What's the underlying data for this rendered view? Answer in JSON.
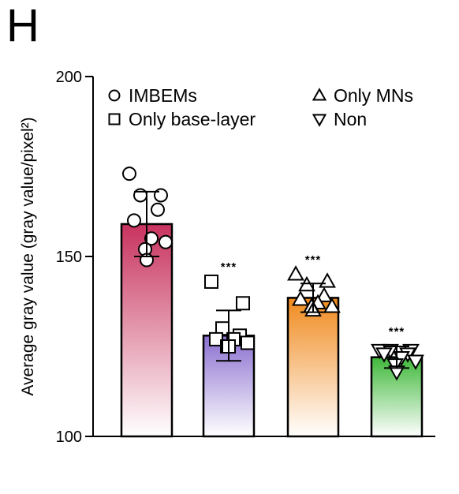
{
  "panel_label": "H",
  "chart_data": {
    "type": "bar",
    "ylabel": "Average gray value (gray value/pixel²)",
    "xlabel": "",
    "ylim": [
      100,
      200
    ],
    "yticks": [
      100,
      150,
      200
    ],
    "legend_position": "top",
    "categories": [
      "IMBEMs",
      "Only base-layer",
      "Only MNs",
      "Non"
    ],
    "values": [
      159,
      128,
      138.5,
      122
    ],
    "errors": [
      9,
      7,
      4,
      3
    ],
    "significance": [
      "",
      "***",
      "***",
      "***"
    ],
    "markers": [
      "circle",
      "square",
      "triangle-up",
      "triangle-down"
    ],
    "colors": [
      "#c8335e",
      "#8a6fd0",
      "#f08a1e",
      "#3fb83a"
    ],
    "points": [
      [
        173,
        167,
        167,
        163,
        160,
        155,
        154,
        152,
        149
      ],
      [
        143,
        137,
        130,
        128,
        127,
        127,
        126,
        125,
        125
      ],
      [
        145,
        143,
        142,
        139,
        138,
        137,
        136,
        136,
        135
      ],
      [
        124,
        124,
        124,
        123,
        123,
        122,
        121,
        120,
        118
      ]
    ]
  }
}
